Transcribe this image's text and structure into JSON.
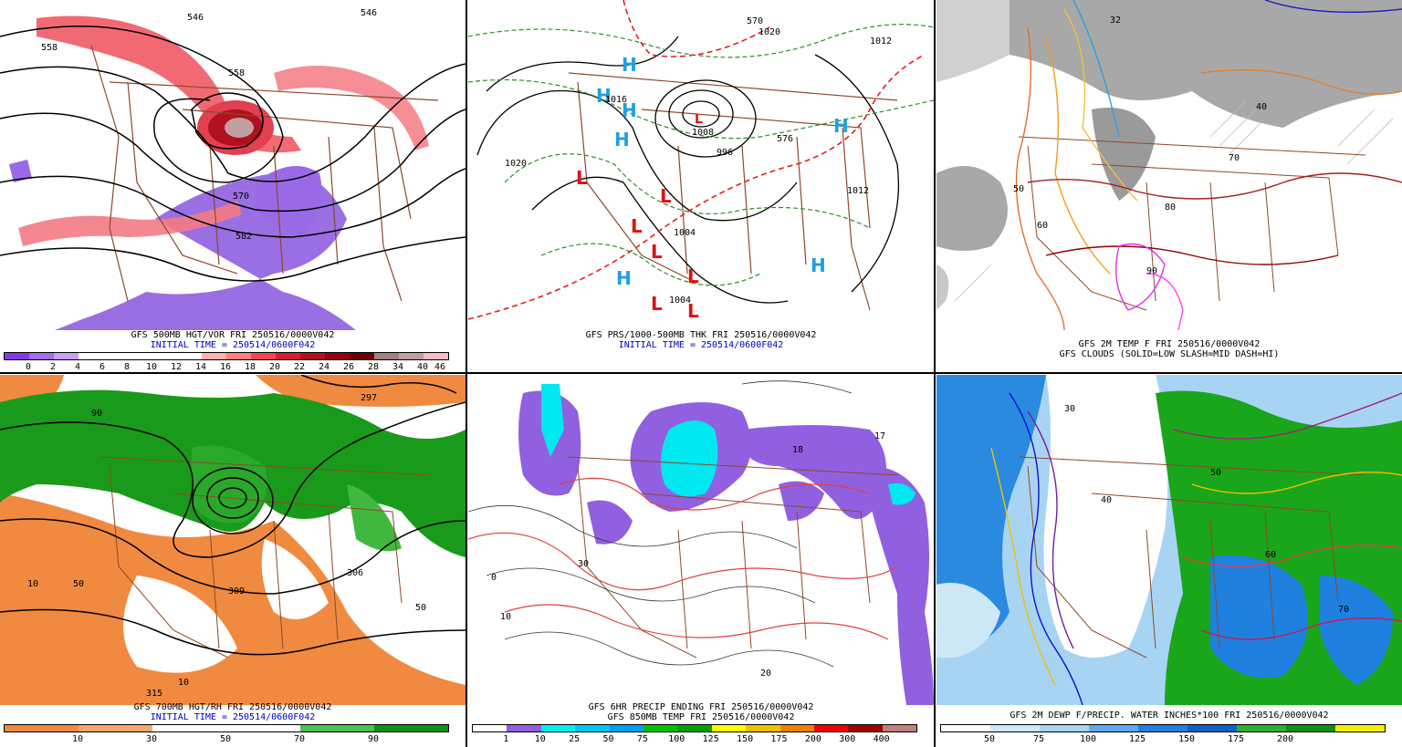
{
  "panels": {
    "p1": {
      "caption_line1": "GFS 500MB HGT/VOR FRI 250516/0000V042",
      "caption_line2": "INITIAL TIME = 250514/0600F042",
      "colorbar_ticks": [
        "0",
        "2",
        "4",
        "6",
        "8",
        "10",
        "12",
        "14",
        "16",
        "18",
        "20",
        "22",
        "24",
        "26",
        "28",
        "34",
        "40",
        "46"
      ],
      "colorbar_colors": [
        "#7f3fe0",
        "#a070e8",
        "#c4a4f0",
        "#ffffff",
        "#ffffff",
        "#ffffff",
        "#ffffff",
        "#ffffff",
        "#ffb0b0",
        "#ff8080",
        "#f04850",
        "#d02030",
        "#b01020",
        "#900010",
        "#6a0008",
        "#a08080",
        "#c0a0a0",
        "#ffb8c8"
      ],
      "contour_labels": [
        "558",
        "546",
        "558",
        "570",
        "582",
        "546"
      ]
    },
    "p2": {
      "caption_line1": "GFS PRS/1000-500MB THK FRI 250516/0000V042",
      "caption_line2": "INITIAL TIME = 250514/0600F042",
      "contour_labels": [
        "1020",
        "1020",
        "1012",
        "1004",
        "996",
        "1008",
        "1012",
        "1016",
        "570",
        "576",
        "1004"
      ]
    },
    "p3": {
      "caption_line1": "GFS 2M TEMP F FRI 250516/0000V042",
      "caption_line2": "GFS CLOUDS (SOLID=LOW SLASH=MID DASH=HI)",
      "contour_labels": [
        "50",
        "60",
        "70",
        "80",
        "90",
        "32",
        "40"
      ]
    },
    "p4": {
      "caption_line1": "GFS 700MB HGT/RH FRI 250516/0000V042",
      "caption_line2": "INITIAL TIME = 250514/0600F042",
      "colorbar_ticks": [
        "10",
        "30",
        "50",
        "70",
        "90"
      ],
      "colorbar_colors": [
        "#f08a40",
        "#f5a868",
        "#ffffff",
        "#ffffff",
        "#50c050",
        "#109010"
      ],
      "contour_labels": [
        "90",
        "50",
        "10",
        "309",
        "306",
        "315",
        "297",
        "50",
        "10"
      ]
    },
    "p5": {
      "caption_line1": "GFS 6HR PRECIP ENDING FRI 250516/0000V042",
      "caption_line2": "GFS 850MB TEMP FRI 250516/0000V042",
      "colorbar_ticks": [
        "1",
        "10",
        "25",
        "50",
        "75",
        "100",
        "125",
        "150",
        "175",
        "200",
        "300",
        "400"
      ],
      "colorbar_colors": [
        "#ffffff",
        "#9060e0",
        "#00f0f0",
        "#00c8f0",
        "#00a0f0",
        "#00c000",
        "#00a000",
        "#ffff00",
        "#f0c000",
        "#f08000",
        "#f00000",
        "#a00000",
        "#c08080"
      ],
      "contour_labels": [
        "18",
        "17",
        "10",
        "20",
        "0",
        "30"
      ]
    },
    "p6": {
      "caption_line1": "GFS 2M DEWP F/PRECIP. WATER INCHES*100 FRI 250516/0000V042",
      "colorbar_ticks": [
        "50",
        "75",
        "100",
        "125",
        "150",
        "175",
        "200"
      ],
      "colorbar_colors": [
        "#ffffff",
        "#cfe8f8",
        "#a8d4f4",
        "#60a8f0",
        "#2080e0",
        "#1060c8",
        "#30b030",
        "#109010",
        "#f0f000"
      ],
      "contour_labels": [
        "30",
        "40",
        "50",
        "60",
        "70"
      ]
    }
  },
  "pressure_centers": {
    "highs": [
      "H",
      "H",
      "H",
      "H",
      "H",
      "H",
      "H"
    ],
    "lows": [
      "L",
      "L",
      "L",
      "L",
      "L",
      "L",
      "L",
      "L"
    ]
  }
}
